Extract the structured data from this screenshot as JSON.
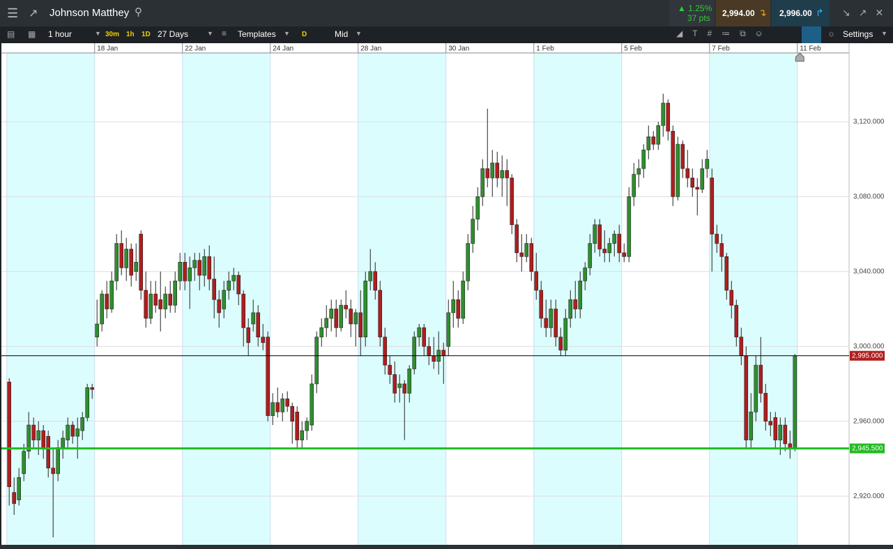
{
  "toolbar": {
    "instrument": "Johnson Matthey",
    "change_pct": "1.25%",
    "change_pts": "37 pts",
    "sell": "2,994.00",
    "buy": "2,996.00",
    "interval": "1 hour",
    "quick": [
      "30m",
      "1h",
      "1D"
    ],
    "range": "27 Days",
    "templates": "Templates",
    "d": "D",
    "price_type": "Mid",
    "settings": "Settings"
  },
  "chart_data": {
    "type": "candlestick",
    "up_color": "#2f8f2f",
    "down_color": "#b01e1e",
    "xlim": [
      -1.6,
      172.1
    ],
    "xticks": [
      {
        "value": 18,
        "label": "18 Jan"
      },
      {
        "value": 36,
        "label": "22 Jan"
      },
      {
        "value": 54,
        "label": "24 Jan"
      },
      {
        "value": 72,
        "label": "28 Jan"
      },
      {
        "value": 90,
        "label": "30 Jan"
      },
      {
        "value": 108,
        "label": "1 Feb"
      },
      {
        "value": 126,
        "label": "5 Feb"
      },
      {
        "value": 144,
        "label": "7 Feb"
      },
      {
        "value": 162,
        "label": "11 Feb"
      }
    ],
    "ylim": [
      2894,
      3162
    ],
    "yticks": [
      {
        "value": 2920,
        "label": "2,920.000"
      },
      {
        "value": 2960,
        "label": "2,960.000"
      },
      {
        "value": 3000,
        "label": "3,000.000"
      },
      {
        "value": 3040,
        "label": "3,040.000"
      },
      {
        "value": 3080,
        "label": "3,080.000"
      },
      {
        "value": 3120,
        "label": "3,120.000"
      }
    ],
    "price_lines": [
      {
        "value": 2995,
        "label": "2,995.000",
        "color": "#b01e1e",
        "line_color": "#000000"
      },
      {
        "value": 2945.5,
        "label": "2,945.500",
        "color": "#22bb22",
        "line_color": "#22bb22"
      }
    ],
    "candles": [
      [
        2981,
        2983,
        2915,
        2925
      ],
      [
        2922,
        2930,
        2910,
        2916
      ],
      [
        2918,
        2935,
        2915,
        2930
      ],
      [
        2932,
        2948,
        2928,
        2944
      ],
      [
        2944,
        2965,
        2940,
        2958
      ],
      [
        2958,
        2962,
        2945,
        2950
      ],
      [
        2950,
        2960,
        2942,
        2955
      ],
      [
        2955,
        2958,
        2940,
        2946
      ],
      [
        2952,
        2955,
        2930,
        2935
      ],
      [
        2935,
        2945,
        2898,
        2932
      ],
      [
        2932,
        2950,
        2928,
        2946
      ],
      [
        2946,
        2955,
        2940,
        2951
      ],
      [
        2950,
        2962,
        2945,
        2958
      ],
      [
        2958,
        2960,
        2948,
        2952
      ],
      [
        2952,
        2962,
        2940,
        2956
      ],
      [
        2955,
        2965,
        2950,
        2962
      ],
      [
        2962,
        2980,
        2960,
        2978
      ],
      [
        2978,
        2980,
        2972,
        2977
      ],
      [
        3005,
        3025,
        3000,
        3012
      ],
      [
        3012,
        3030,
        3008,
        3028
      ],
      [
        3028,
        3035,
        3015,
        3020
      ],
      [
        3020,
        3040,
        3018,
        3035
      ],
      [
        3035,
        3060,
        3030,
        3055
      ],
      [
        3055,
        3062,
        3038,
        3042
      ],
      [
        3042,
        3058,
        3035,
        3052
      ],
      [
        3052,
        3055,
        3032,
        3038
      ],
      [
        3040,
        3055,
        3035,
        3045
      ],
      [
        3060,
        3062,
        3025,
        3030
      ],
      [
        3030,
        3040,
        3010,
        3015
      ],
      [
        3015,
        3035,
        3012,
        3028
      ],
      [
        3028,
        3035,
        3018,
        3022
      ],
      [
        3025,
        3040,
        3008,
        3020
      ],
      [
        3020,
        3032,
        3015,
        3028
      ],
      [
        3028,
        3035,
        3018,
        3022
      ],
      [
        3022,
        3040,
        3018,
        3035
      ],
      [
        3035,
        3050,
        3030,
        3045
      ],
      [
        3045,
        3050,
        3030,
        3035
      ],
      [
        3035,
        3048,
        3020,
        3042
      ],
      [
        3042,
        3050,
        3035,
        3046
      ],
      [
        3046,
        3050,
        3030,
        3038
      ],
      [
        3038,
        3052,
        3032,
        3048
      ],
      [
        3048,
        3054,
        3030,
        3036
      ],
      [
        3036,
        3048,
        3015,
        3025
      ],
      [
        3025,
        3030,
        3010,
        3018
      ],
      [
        3020,
        3035,
        3015,
        3030
      ],
      [
        3030,
        3040,
        3025,
        3035
      ],
      [
        3035,
        3042,
        3030,
        3038
      ],
      [
        3038,
        3040,
        3022,
        3028
      ],
      [
        3028,
        3030,
        3000,
        3010
      ],
      [
        3010,
        3015,
        2995,
        3002
      ],
      [
        3012,
        3025,
        3008,
        3018
      ],
      [
        3018,
        3022,
        3000,
        3005
      ],
      [
        3005,
        3012,
        2998,
        3002
      ],
      [
        3005,
        3008,
        2960,
        2963
      ],
      [
        2963,
        2975,
        2958,
        2970
      ],
      [
        2970,
        2978,
        2962,
        2965
      ],
      [
        2965,
        2975,
        2960,
        2972
      ],
      [
        2972,
        2976,
        2965,
        2968
      ],
      [
        2968,
        2970,
        2948,
        2960
      ],
      [
        2965,
        2968,
        2945,
        2950
      ],
      [
        2950,
        2960,
        2945,
        2955
      ],
      [
        2955,
        2962,
        2950,
        2960
      ],
      [
        2958,
        2985,
        2955,
        2980
      ],
      [
        2980,
        3008,
        2975,
        3005
      ],
      [
        3005,
        3015,
        3000,
        3010
      ],
      [
        3010,
        3022,
        3005,
        3015
      ],
      [
        3015,
        3025,
        3008,
        3020
      ],
      [
        3020,
        3025,
        3005,
        3010
      ],
      [
        3010,
        3025,
        3008,
        3022
      ],
      [
        3022,
        3030,
        3015,
        3020
      ],
      [
        3020,
        3025,
        3005,
        3012
      ],
      [
        3012,
        3020,
        3000,
        3018
      ],
      [
        3018,
        3030,
        2995,
        3005
      ],
      [
        3005,
        3040,
        3000,
        3035
      ],
      [
        3035,
        3052,
        3030,
        3040
      ],
      [
        3040,
        3045,
        3025,
        3030
      ],
      [
        3030,
        3035,
        3000,
        3005
      ],
      [
        3005,
        3010,
        2985,
        2990
      ],
      [
        2990,
        2995,
        2980,
        2985
      ],
      [
        2985,
        2992,
        2970,
        2975
      ],
      [
        2978,
        2985,
        2970,
        2980
      ],
      [
        2980,
        2982,
        2950,
        2975
      ],
      [
        2975,
        2990,
        2970,
        2988
      ],
      [
        2988,
        3008,
        2985,
        3005
      ],
      [
        3005,
        3012,
        3000,
        3010
      ],
      [
        3010,
        3012,
        2995,
        3000
      ],
      [
        3000,
        3005,
        2990,
        2995
      ],
      [
        2995,
        3005,
        2988,
        2992
      ],
      [
        2992,
        3008,
        2985,
        2998
      ],
      [
        2998,
        3002,
        2980,
        2995
      ],
      [
        3000,
        3025,
        2995,
        3018
      ],
      [
        3018,
        3035,
        3010,
        3025
      ],
      [
        3025,
        3030,
        3010,
        3015
      ],
      [
        3015,
        3040,
        3012,
        3035
      ],
      [
        3035,
        3060,
        3030,
        3055
      ],
      [
        3055,
        3075,
        3050,
        3068
      ],
      [
        3068,
        3085,
        3062,
        3080
      ],
      [
        3080,
        3100,
        3075,
        3095
      ],
      [
        3095,
        3127,
        3085,
        3090
      ],
      [
        3090,
        3105,
        3080,
        3098
      ],
      [
        3098,
        3104,
        3085,
        3090
      ],
      [
        3090,
        3102,
        3080,
        3094
      ],
      [
        3094,
        3100,
        3075,
        3090
      ],
      [
        3090,
        3092,
        3060,
        3065
      ],
      [
        3065,
        3068,
        3045,
        3050
      ],
      [
        3050,
        3060,
        3040,
        3048
      ],
      [
        3048,
        3060,
        3045,
        3055
      ],
      [
        3055,
        3058,
        3035,
        3040
      ],
      [
        3040,
        3050,
        3025,
        3030
      ],
      [
        3030,
        3035,
        3010,
        3015
      ],
      [
        3015,
        3025,
        3005,
        3010
      ],
      [
        3010,
        3025,
        3005,
        3020
      ],
      [
        3020,
        3025,
        3000,
        3005
      ],
      [
        3005,
        3010,
        2995,
        2998
      ],
      [
        2998,
        3020,
        2995,
        3015
      ],
      [
        3015,
        3030,
        3010,
        3025
      ],
      [
        3025,
        3035,
        3015,
        3020
      ],
      [
        3020,
        3040,
        3015,
        3035
      ],
      [
        3035,
        3045,
        3030,
        3042
      ],
      [
        3042,
        3060,
        3038,
        3055
      ],
      [
        3055,
        3068,
        3050,
        3065
      ],
      [
        3065,
        3068,
        3048,
        3052
      ],
      [
        3052,
        3062,
        3045,
        3050
      ],
      [
        3050,
        3058,
        3045,
        3055
      ],
      [
        3055,
        3062,
        3048,
        3060
      ],
      [
        3060,
        3065,
        3045,
        3050
      ],
      [
        3050,
        3055,
        3045,
        3048
      ],
      [
        3048,
        3085,
        3045,
        3080
      ],
      [
        3080,
        3098,
        3075,
        3092
      ],
      [
        3092,
        3100,
        3085,
        3095
      ],
      [
        3095,
        3108,
        3090,
        3105
      ],
      [
        3105,
        3118,
        3100,
        3112
      ],
      [
        3112,
        3115,
        3105,
        3108
      ],
      [
        3108,
        3120,
        3105,
        3118
      ],
      [
        3118,
        3135,
        3112,
        3130
      ],
      [
        3130,
        3132,
        3110,
        3115
      ],
      [
        3115,
        3118,
        3075,
        3080
      ],
      [
        3080,
        3112,
        3078,
        3108
      ],
      [
        3108,
        3110,
        3090,
        3095
      ],
      [
        3095,
        3105,
        3085,
        3090
      ],
      [
        3090,
        3095,
        3080,
        3085
      ],
      [
        3085,
        3090,
        3070,
        3084
      ],
      [
        3084,
        3100,
        3082,
        3095
      ],
      [
        3095,
        3105,
        3090,
        3100
      ],
      [
        3090,
        3095,
        3040,
        3060
      ],
      [
        3060,
        3065,
        3050,
        3055
      ],
      [
        3055,
        3060,
        3040,
        3048
      ],
      [
        3048,
        3050,
        3025,
        3030
      ],
      [
        3030,
        3035,
        3015,
        3022
      ],
      [
        3022,
        3025,
        3000,
        3005
      ],
      [
        3005,
        3010,
        2990,
        2995
      ],
      [
        2995,
        3000,
        2945,
        2950
      ],
      [
        2950,
        2975,
        2945,
        2965
      ],
      [
        2965,
        2995,
        2960,
        2990
      ],
      [
        2990,
        3005,
        2970,
        2975
      ],
      [
        2975,
        2980,
        2955,
        2960
      ],
      [
        2960,
        2965,
        2952,
        2958
      ],
      [
        2962,
        2965,
        2945,
        2950
      ],
      [
        2950,
        2962,
        2942,
        2958
      ],
      [
        2958,
        2962,
        2944,
        2948
      ],
      [
        2948,
        2955,
        2940,
        2946
      ],
      [
        2946,
        2996,
        2944,
        2995
      ]
    ]
  }
}
